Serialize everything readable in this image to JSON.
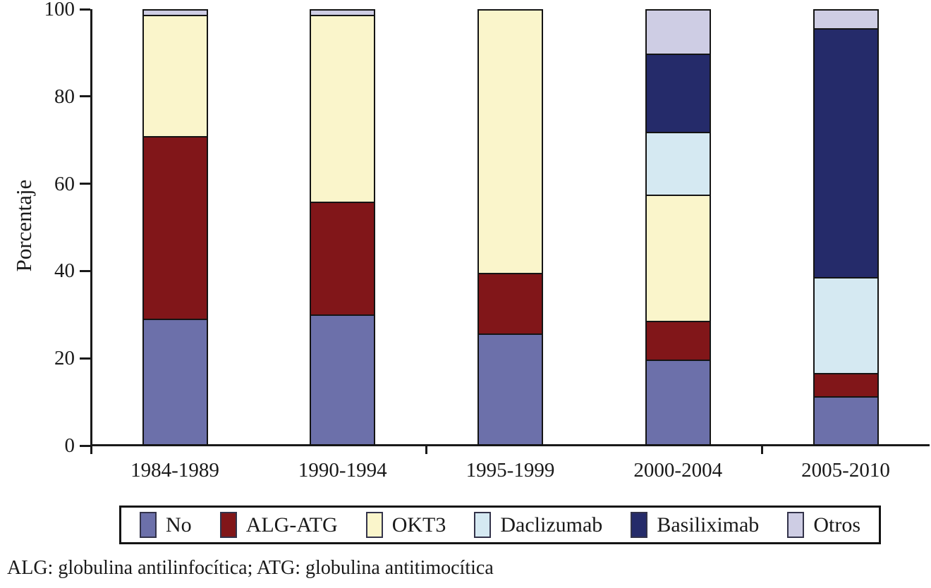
{
  "chart_data": {
    "type": "bar",
    "stacked": true,
    "title": "",
    "ylabel": "Porcentaje",
    "xlabel": "",
    "ylim": [
      0,
      100
    ],
    "y_ticks": [
      0,
      20,
      40,
      60,
      80,
      100
    ],
    "x_boundary_ticks": [
      0,
      2,
      4
    ],
    "grid": false,
    "legend_position": "bottom-box",
    "categories": [
      "1984-1989",
      "1990-1994",
      "1995-1999",
      "2000-2004",
      "2005-2010"
    ],
    "series": [
      {
        "name": "No",
        "color": "#6c70aa",
        "values": [
          29,
          30,
          25.5,
          19.5,
          11
        ]
      },
      {
        "name": "ALG-ATG",
        "color": "#811619",
        "values": [
          42,
          26,
          14,
          9,
          5.5
        ]
      },
      {
        "name": "OKT3",
        "color": "#faf5cb",
        "values": [
          28,
          43,
          60.5,
          29,
          0
        ]
      },
      {
        "name": "Daclizumab",
        "color": "#d5e9f2",
        "values": [
          0,
          0,
          0,
          14.5,
          22
        ]
      },
      {
        "name": "Basiliximab",
        "color": "#252b6a",
        "values": [
          0,
          0,
          0,
          18,
          57.5
        ]
      },
      {
        "name": "Otros",
        "color": "#cecde4",
        "values": [
          1,
          1,
          0,
          10,
          4
        ]
      }
    ],
    "axis_color": "#1a1a1a"
  },
  "footnote": "ALG: globulina antilinfocítica; ATG: globulina antitimocítica"
}
